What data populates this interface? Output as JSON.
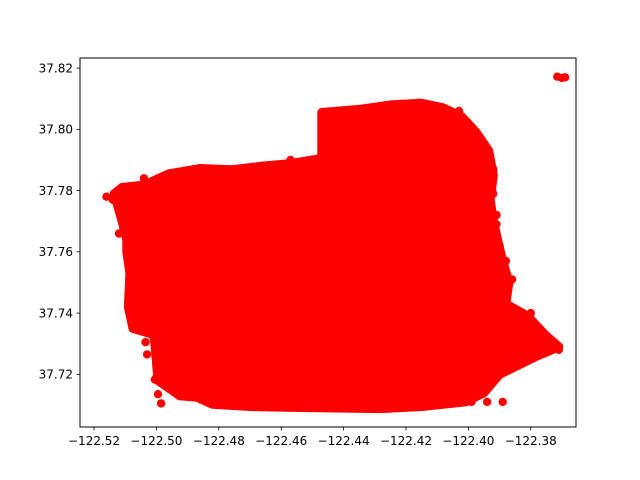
{
  "chart_data": {
    "type": "scatter",
    "title": "",
    "xlabel": "",
    "ylabel": "",
    "xlim": [
      -122.5245,
      -122.3655
    ],
    "ylim": [
      37.7028,
      37.8233
    ],
    "x_ticks": [
      -122.52,
      -122.5,
      -122.48,
      -122.46,
      -122.44,
      -122.42,
      -122.4,
      -122.38
    ],
    "x_tick_labels": [
      "−122.52",
      "−122.50",
      "−122.48",
      "−122.46",
      "−122.44",
      "−122.42",
      "−122.40",
      "−122.38"
    ],
    "y_ticks": [
      37.72,
      37.74,
      37.76,
      37.78,
      37.8,
      37.82
    ],
    "y_tick_labels": [
      "37.72",
      "37.74",
      "37.76",
      "37.78",
      "37.80",
      "37.82"
    ],
    "grid": false,
    "legend": null,
    "marker_color": "#ff0000",
    "series": [
      {
        "color": "#ff0000",
        "region": [
          [
            -122.5135,
            37.779
          ],
          [
            -122.511,
            37.781
          ],
          [
            -122.504,
            37.7818
          ],
          [
            -122.496,
            37.7855
          ],
          [
            -122.486,
            37.7872
          ],
          [
            -122.476,
            37.7868
          ],
          [
            -122.466,
            37.788
          ],
          [
            -122.457,
            37.7888
          ],
          [
            -122.447,
            37.7905
          ],
          [
            -122.447,
            37.8055
          ],
          [
            -122.435,
            37.8065
          ],
          [
            -122.425,
            37.808
          ],
          [
            -122.415,
            37.8085
          ],
          [
            -122.408,
            37.807
          ],
          [
            -122.402,
            37.804
          ],
          [
            -122.3975,
            37.799
          ],
          [
            -122.3935,
            37.793
          ],
          [
            -122.392,
            37.785
          ],
          [
            -122.393,
            37.777
          ],
          [
            -122.392,
            37.77
          ],
          [
            -122.3895,
            37.759
          ],
          [
            -122.387,
            37.75
          ],
          [
            -122.388,
            37.743
          ],
          [
            -122.381,
            37.739
          ],
          [
            -122.3755,
            37.733
          ],
          [
            -122.371,
            37.729
          ],
          [
            -122.378,
            37.726
          ],
          [
            -122.39,
            37.72
          ],
          [
            -122.395,
            37.714
          ],
          [
            -122.401,
            37.711
          ],
          [
            -122.415,
            37.7095
          ],
          [
            -122.428,
            37.7088
          ],
          [
            -122.442,
            37.709
          ],
          [
            -122.456,
            37.7092
          ],
          [
            -122.47,
            37.7095
          ],
          [
            -122.482,
            37.7102
          ],
          [
            -122.487,
            37.7125
          ],
          [
            -122.4925,
            37.713
          ],
          [
            -122.4995,
            37.718
          ],
          [
            -122.5005,
            37.73
          ],
          [
            -122.501,
            37.733
          ],
          [
            -122.5075,
            37.735
          ],
          [
            -122.509,
            37.742
          ],
          [
            -122.5085,
            37.753
          ],
          [
            -122.5095,
            37.76
          ],
          [
            -122.5095,
            37.764
          ],
          [
            -122.511,
            37.77
          ],
          [
            -122.5135,
            37.779
          ]
        ],
        "points": [
          [
            -122.3715,
            37.8172
          ],
          [
            -122.37,
            37.8168
          ],
          [
            -122.369,
            37.817
          ],
          [
            -122.516,
            37.778
          ],
          [
            -122.514,
            37.777
          ],
          [
            -122.512,
            37.766
          ],
          [
            -122.5,
            37.719
          ],
          [
            -122.5005,
            37.7183
          ],
          [
            -122.4995,
            37.7135
          ],
          [
            -122.4985,
            37.7105
          ],
          [
            -122.5035,
            37.7305
          ],
          [
            -122.503,
            37.7265
          ],
          [
            -122.493,
            37.7245
          ],
          [
            -122.4875,
            37.714
          ],
          [
            -122.4865,
            37.7125
          ],
          [
            -122.5005,
            37.768
          ],
          [
            -122.497,
            37.783
          ],
          [
            -122.462,
            37.757
          ],
          [
            -122.457,
            37.7545
          ],
          [
            -122.4665,
            37.752
          ],
          [
            -122.449,
            37.748
          ],
          [
            -122.394,
            37.711
          ],
          [
            -122.399,
            37.711
          ],
          [
            -122.389,
            37.711
          ],
          [
            -122.409,
            37.715
          ],
          [
            -122.403,
            37.713
          ],
          [
            -122.3775,
            37.73
          ],
          [
            -122.3745,
            37.7285
          ],
          [
            -122.371,
            37.728
          ],
          [
            -122.38,
            37.74
          ],
          [
            -122.386,
            37.751
          ],
          [
            -122.388,
            37.757
          ],
          [
            -122.39,
            37.762
          ],
          [
            -122.391,
            37.769
          ],
          [
            -122.391,
            37.772
          ],
          [
            -122.392,
            37.779
          ],
          [
            -122.393,
            37.783
          ],
          [
            -122.392,
            37.787
          ],
          [
            -122.403,
            37.806
          ],
          [
            -122.416,
            37.8087
          ],
          [
            -122.43,
            37.8072
          ],
          [
            -122.442,
            37.806
          ],
          [
            -122.446,
            37.805
          ],
          [
            -122.4465,
            37.796
          ],
          [
            -122.457,
            37.79
          ],
          [
            -122.478,
            37.7865
          ],
          [
            -122.488,
            37.787
          ],
          [
            -122.504,
            37.784
          ],
          [
            -122.51,
            37.779
          ],
          [
            -122.509,
            37.764
          ],
          [
            -122.508,
            37.752
          ],
          [
            -122.507,
            37.742
          ],
          [
            -122.5045,
            37.738
          ],
          [
            -122.427,
            37.7195
          ],
          [
            -122.417,
            37.7165
          ],
          [
            -122.434,
            37.724
          ]
        ]
      }
    ]
  }
}
